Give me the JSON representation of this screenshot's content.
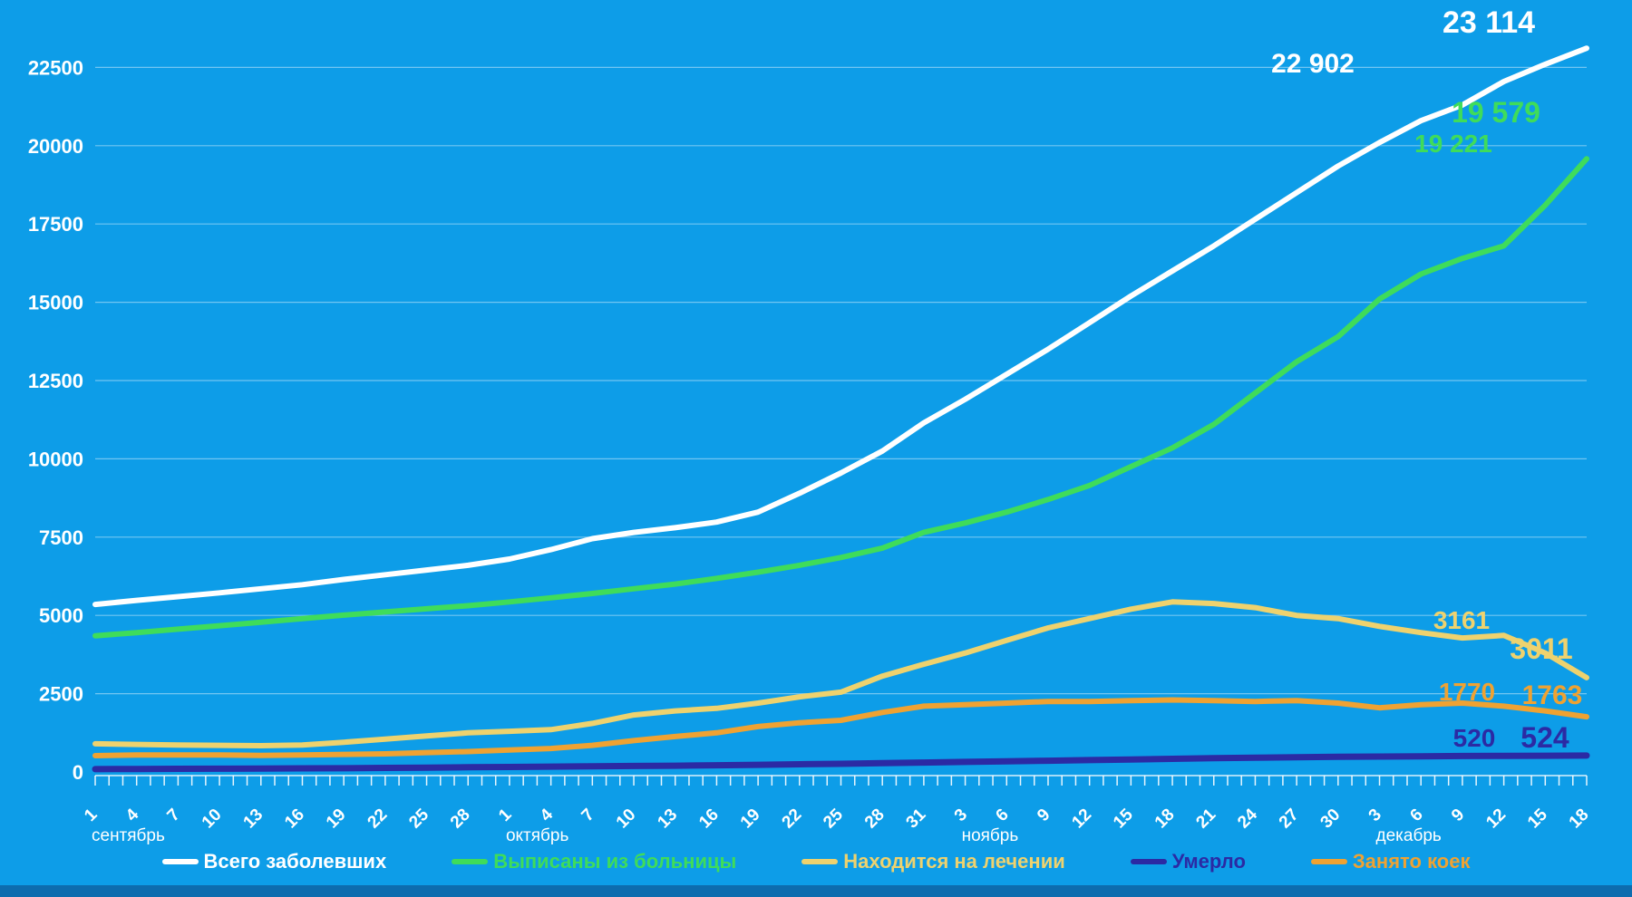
{
  "page": {
    "background_color": "#0d9de8",
    "bottom_bar_color": "#0d6cae",
    "text_color": "#ffffff"
  },
  "chart_data": {
    "type": "line",
    "title": "",
    "grid": true,
    "legend_position": "bottom",
    "y_axis": {
      "ticks": [
        0,
        2500,
        5000,
        7500,
        10000,
        12500,
        15000,
        17500,
        20000,
        22500
      ],
      "range": [
        0,
        23500
      ]
    },
    "x_axis": {
      "tick_labels": [
        "1",
        "4",
        "7",
        "10",
        "13",
        "16",
        "19",
        "22",
        "25",
        "28",
        "1",
        "4",
        "7",
        "10",
        "13",
        "16",
        "19",
        "22",
        "25",
        "28",
        "31",
        "3",
        "6",
        "9",
        "12",
        "15",
        "18",
        "21",
        "24",
        "27",
        "30",
        "3",
        "6",
        "9",
        "12",
        "15",
        "18"
      ],
      "days_per_labeled_tick": 3,
      "month_labels": [
        {
          "label": "сентябрь",
          "tick_index": 0
        },
        {
          "label": "октябрь",
          "tick_index": 10
        },
        {
          "label": "ноябрь",
          "tick_index": 21
        },
        {
          "label": "декабрь",
          "tick_index": 31
        }
      ]
    },
    "series": [
      {
        "key": "total",
        "name": "Всего заболевших",
        "color": "#ffffff",
        "values": [
          5350,
          5480,
          5600,
          5720,
          5850,
          5980,
          6150,
          6300,
          6450,
          6600,
          6800,
          7100,
          7450,
          7650,
          7800,
          7980,
          8300,
          8900,
          9550,
          10250,
          11150,
          11900,
          12700,
          13500,
          14350,
          15200,
          16000,
          16800,
          17650,
          18500,
          19350,
          20100,
          20800,
          21300,
          22050,
          22600,
          23114
        ],
        "prev_label": {
          "text": "22 902",
          "value": 22902
        },
        "last_label": {
          "text": "23 114",
          "value": 23114
        }
      },
      {
        "key": "discharged",
        "name": "Выписаны из больницы",
        "color": "#3fdc5a",
        "values": [
          4350,
          4450,
          4560,
          4670,
          4780,
          4900,
          5010,
          5110,
          5210,
          5310,
          5430,
          5560,
          5700,
          5850,
          6000,
          6180,
          6380,
          6600,
          6850,
          7150,
          7650,
          7950,
          8300,
          8700,
          9150,
          9750,
          10350,
          11100,
          12100,
          13100,
          13900,
          15100,
          15900,
          16400,
          16800,
          18100,
          19579
        ],
        "prev_label": {
          "text": "19 221",
          "value": 19221
        },
        "last_label": {
          "text": "19 579",
          "value": 19579
        }
      },
      {
        "key": "in-treatment",
        "name": "Находится на лечении",
        "color": "#eed26e",
        "values": [
          900,
          880,
          860,
          850,
          840,
          860,
          950,
          1050,
          1150,
          1250,
          1300,
          1350,
          1550,
          1820,
          1950,
          2030,
          2200,
          2400,
          2550,
          3060,
          3440,
          3800,
          4200,
          4600,
          4900,
          5200,
          5430,
          5380,
          5250,
          5000,
          4900,
          4650,
          4450,
          4280,
          4360,
          3800,
          3011
        ],
        "prev_label": {
          "text": "3161",
          "value": 3161
        },
        "last_label": {
          "text": "3011",
          "value": 3011
        }
      },
      {
        "key": "died",
        "name": "Умерло",
        "color": "#2b2aa4",
        "values": [
          90,
          95,
          100,
          105,
          110,
          115,
          120,
          130,
          140,
          150,
          160,
          170,
          180,
          190,
          200,
          215,
          230,
          245,
          260,
          280,
          300,
          320,
          340,
          360,
          380,
          400,
          420,
          440,
          455,
          470,
          482,
          492,
          500,
          508,
          514,
          518,
          524
        ],
        "prev_label": {
          "text": "520",
          "value": 520
        },
        "last_label": {
          "text": "524",
          "value": 524
        }
      },
      {
        "key": "beds-occupied",
        "name": "Занято коек",
        "color": "#efa232",
        "values": [
          520,
          540,
          545,
          540,
          530,
          545,
          560,
          580,
          620,
          650,
          700,
          750,
          850,
          1000,
          1130,
          1250,
          1450,
          1570,
          1650,
          1900,
          2100,
          2150,
          2200,
          2250,
          2250,
          2280,
          2300,
          2280,
          2250,
          2280,
          2200,
          2050,
          2150,
          2200,
          2100,
          1950,
          1763
        ],
        "prev_label": {
          "text": "1770",
          "value": 1770
        },
        "last_label": {
          "text": "1763",
          "value": 1763
        }
      }
    ],
    "legend": [
      {
        "label": "Всего заболевших",
        "color": "#ffffff"
      },
      {
        "label": "Выписаны из больницы",
        "color": "#3fdc5a"
      },
      {
        "label": "Находится на лечении",
        "color": "#eed26e"
      },
      {
        "label": "Умерло",
        "color": "#2b2aa4"
      },
      {
        "label": "Занято коек",
        "color": "#efa232"
      }
    ]
  }
}
